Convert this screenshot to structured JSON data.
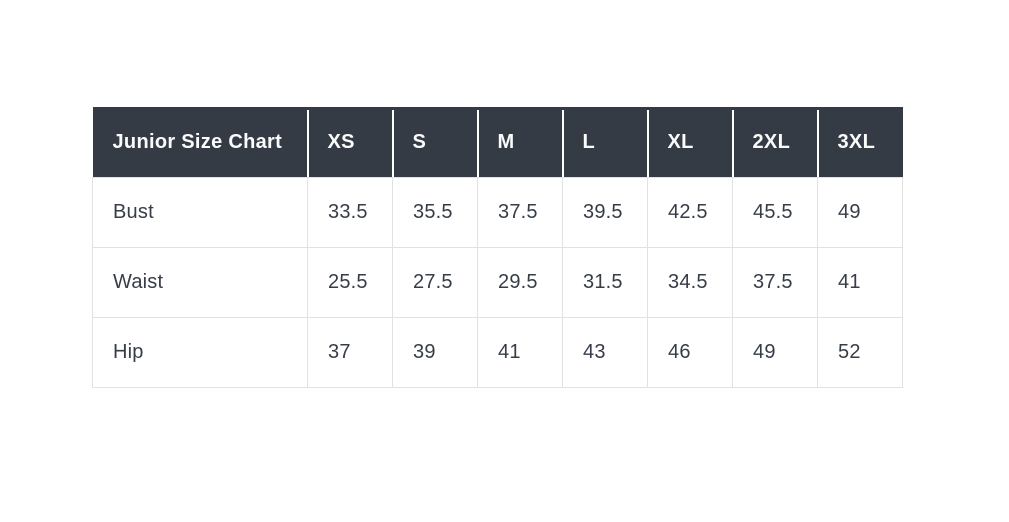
{
  "table": {
    "header": [
      "Junior Size Chart",
      "XS",
      "S",
      "M",
      "L",
      "XL",
      "2XL",
      "3XL"
    ],
    "rows": [
      {
        "label": "Bust",
        "values": [
          "33.5",
          "35.5",
          "37.5",
          "39.5",
          "42.5",
          "45.5",
          "49"
        ]
      },
      {
        "label": "Waist",
        "values": [
          "25.5",
          "27.5",
          "29.5",
          "31.5",
          "34.5",
          "37.5",
          "41"
        ]
      },
      {
        "label": "Hip",
        "values": [
          "37",
          "39",
          "41",
          "43",
          "46",
          "49",
          "52"
        ]
      }
    ]
  },
  "chart_data": {
    "type": "table",
    "title": "Junior Size Chart",
    "columns": [
      "XS",
      "S",
      "M",
      "L",
      "XL",
      "2XL",
      "3XL"
    ],
    "rows": [
      {
        "measurement": "Bust",
        "values": [
          33.5,
          35.5,
          37.5,
          39.5,
          42.5,
          45.5,
          49
        ]
      },
      {
        "measurement": "Waist",
        "values": [
          25.5,
          27.5,
          29.5,
          31.5,
          34.5,
          37.5,
          41
        ]
      },
      {
        "measurement": "Hip",
        "values": [
          37,
          39,
          41,
          43,
          46,
          49,
          52
        ]
      }
    ],
    "layout": {
      "header_position": "top",
      "grid": true
    }
  },
  "colors": {
    "page_bg": "#ffffff",
    "header_bg": "#343b45",
    "header_text": "#fbfbfb",
    "body_text": "#363d47",
    "grid_border": "#e1e2e4",
    "header_separator": "#ffffff"
  }
}
